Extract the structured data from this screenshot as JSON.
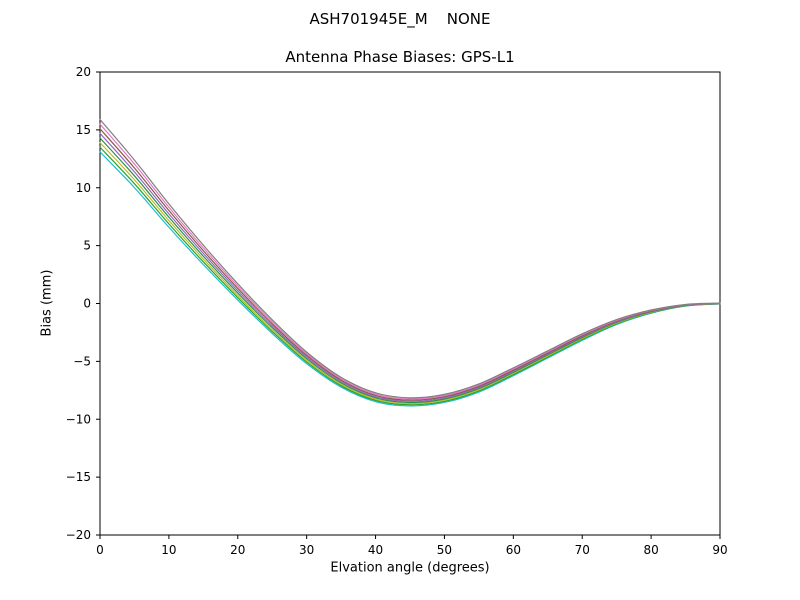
{
  "chart_data": {
    "type": "line",
    "title": "ASH701945E_M    NONE",
    "subtitle": "Antenna Phase Biases: GPS-L1",
    "xlabel": "Elvation angle (degrees)",
    "ylabel": "Bias (mm)",
    "xlim": [
      0,
      90
    ],
    "ylim": [
      -20,
      20
    ],
    "xticks": [
      0,
      10,
      20,
      30,
      40,
      50,
      60,
      70,
      80,
      90
    ],
    "xtick_labels": [
      "0",
      "10",
      "20",
      "30",
      "40",
      "50",
      "60",
      "70",
      "80",
      "90"
    ],
    "yticks": [
      -20,
      -15,
      -10,
      -5,
      0,
      5,
      10,
      15,
      20
    ],
    "ytick_labels": [
      "−20",
      "−15",
      "−10",
      "−5",
      "0",
      "5",
      "10",
      "15",
      "20"
    ],
    "grid": false,
    "legend": "none",
    "axis_color": "#000000",
    "background": "#ffffff",
    "x": [
      0,
      5,
      10,
      15,
      20,
      25,
      30,
      35,
      40,
      45,
      50,
      55,
      60,
      65,
      70,
      75,
      80,
      85,
      90
    ],
    "series": [
      {
        "name": "line-1",
        "color": "#17becf",
        "values": [
          13.1,
          10.01,
          6.59,
          3.36,
          0.3,
          -2.59,
          -5.2,
          -7.22,
          -8.48,
          -8.85,
          -8.55,
          -7.65,
          -6.24,
          -4.71,
          -3.18,
          -1.81,
          -0.84,
          -0.22,
          -0.03
        ]
      },
      {
        "name": "line-2",
        "color": "#2ca02c",
        "values": [
          13.5,
          10.35,
          6.88,
          3.6,
          0.5,
          -2.42,
          -5.06,
          -7.1,
          -8.37,
          -8.75,
          -8.45,
          -7.55,
          -6.14,
          -4.62,
          -3.1,
          -1.75,
          -0.8,
          -0.2,
          -0.02
        ]
      },
      {
        "name": "line-3",
        "color": "#bcbd22",
        "values": [
          13.9,
          10.69,
          7.17,
          3.84,
          0.7,
          -2.25,
          -4.92,
          -6.98,
          -8.26,
          -8.65,
          -8.35,
          -7.45,
          -6.04,
          -4.53,
          -3.02,
          -1.69,
          -0.76,
          -0.18,
          -0.01
        ]
      },
      {
        "name": "line-4",
        "color": "#2e8b57",
        "values": [
          14.3,
          11.03,
          7.46,
          4.08,
          0.9,
          -2.08,
          -4.77,
          -6.86,
          -8.15,
          -8.55,
          -8.25,
          -7.35,
          -5.95,
          -4.44,
          -2.94,
          -1.63,
          -0.72,
          -0.16,
          0.0
        ]
      },
      {
        "name": "line-5",
        "color": "#9467bd",
        "values": [
          14.7,
          11.37,
          7.74,
          4.32,
          1.1,
          -1.92,
          -4.63,
          -6.74,
          -8.05,
          -8.45,
          -8.15,
          -7.25,
          -5.85,
          -4.36,
          -2.86,
          -1.57,
          -0.68,
          -0.14,
          0.0
        ]
      },
      {
        "name": "line-6",
        "color": "#8c564b",
        "values": [
          15.1,
          11.71,
          8.03,
          4.56,
          1.3,
          -1.75,
          -4.48,
          -6.62,
          -7.94,
          -8.35,
          -8.05,
          -7.15,
          -5.76,
          -4.27,
          -2.78,
          -1.51,
          -0.64,
          -0.12,
          0.01
        ]
      },
      {
        "name": "line-7",
        "color": "#e377c2",
        "values": [
          15.5,
          12.05,
          8.32,
          4.8,
          1.5,
          -1.58,
          -4.34,
          -6.5,
          -7.83,
          -8.25,
          -7.95,
          -7.05,
          -5.66,
          -4.18,
          -2.7,
          -1.45,
          -0.6,
          -0.1,
          0.02
        ]
      },
      {
        "name": "line-8",
        "color": "#7f7f7f",
        "values": [
          15.9,
          12.39,
          8.61,
          5.04,
          1.7,
          -1.41,
          -4.2,
          -6.38,
          -7.72,
          -8.15,
          -7.85,
          -6.95,
          -5.56,
          -4.09,
          -2.62,
          -1.39,
          -0.56,
          -0.08,
          0.03
        ]
      }
    ]
  }
}
